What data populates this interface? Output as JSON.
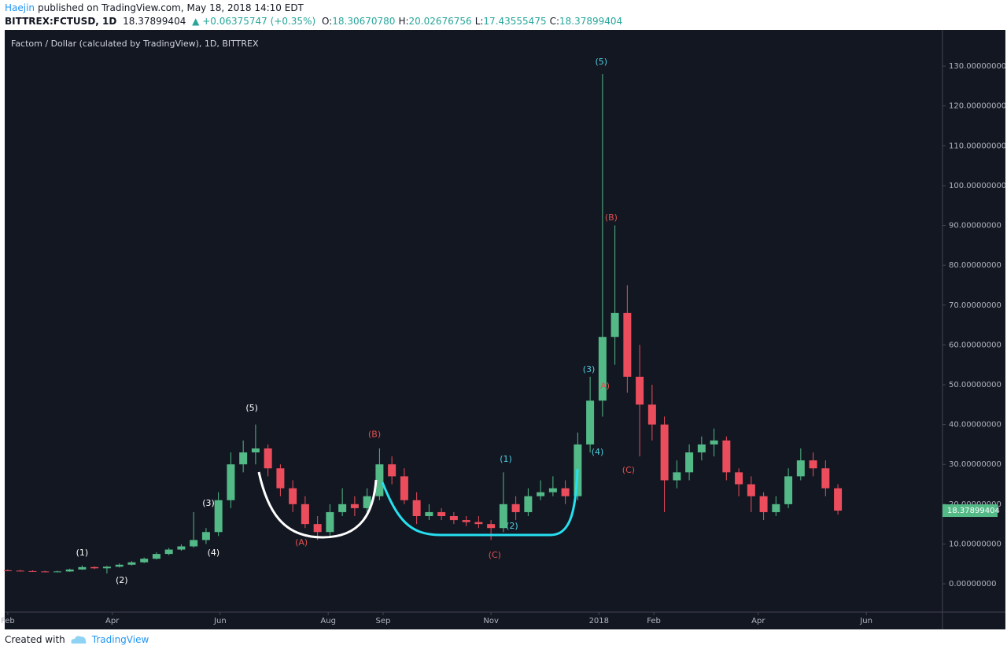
{
  "header": {
    "author": "Haejin",
    "published": "published on TradingView.com, May 18, 2018 14:10 EDT",
    "symbol": "BITTREX:FCTUSD, 1D",
    "price": "18.37899404",
    "change": "▲ +0.06375747 (+0.35%)",
    "ohlc": [
      {
        "key": "O:",
        "value": "18.30670780"
      },
      {
        "key": "H:",
        "value": "20.02676756"
      },
      {
        "key": "L:",
        "value": "17.43555475"
      },
      {
        "key": "C:",
        "value": "18.37899404"
      }
    ]
  },
  "chart_data": {
    "type": "candlestick",
    "title": "Factom / Dollar (calculated by TradingView), 1D, BITTREX",
    "x": [
      0,
      1,
      2,
      3,
      4,
      5,
      6,
      7,
      8,
      9,
      10,
      11,
      12,
      13,
      14,
      15,
      16,
      17,
      18,
      19,
      20,
      21,
      22,
      23,
      24,
      25,
      26,
      27,
      28,
      29,
      30,
      31,
      32,
      33,
      34,
      35,
      36,
      37,
      38,
      39,
      40,
      41,
      42,
      43,
      44,
      45,
      46,
      47,
      48,
      49,
      50,
      51,
      52,
      53,
      54,
      55,
      56,
      57,
      58,
      59,
      60,
      61,
      62,
      63,
      64,
      65,
      66,
      67
    ],
    "open": [
      3.4,
      3.3,
      3.2,
      3.1,
      3.0,
      3.1,
      3.6,
      4.2,
      3.9,
      4.3,
      4.8,
      5.4,
      6.3,
      7.5,
      8.6,
      9.4,
      11,
      13,
      21,
      30,
      33,
      34,
      29,
      24,
      20,
      15,
      13,
      18,
      20,
      19,
      22,
      30,
      27,
      21,
      17,
      18,
      17,
      16,
      15.5,
      15,
      14,
      20,
      18,
      22,
      23,
      24,
      22,
      35,
      46,
      62,
      68,
      52,
      45,
      40,
      26,
      28,
      33,
      35,
      36,
      28,
      25,
      22,
      18,
      20,
      27,
      31,
      29,
      24
    ],
    "high": [
      3.6,
      3.5,
      3.4,
      3.3,
      3.3,
      3.8,
      4.6,
      4.4,
      4.5,
      5.1,
      5.7,
      6.6,
      7.9,
      9.0,
      9.9,
      18,
      14,
      23,
      33,
      36,
      40,
      35,
      30,
      26,
      22,
      17,
      20,
      24,
      22,
      24,
      34,
      32,
      29,
      23,
      20,
      19,
      18,
      17,
      17,
      16,
      28,
      22,
      24,
      26,
      27,
      26,
      38,
      52,
      128,
      90,
      75,
      60,
      50,
      42,
      31,
      35,
      37,
      39,
      37,
      29,
      27,
      23,
      22,
      29,
      34,
      33,
      31,
      25
    ],
    "low": [
      3.2,
      3.1,
      3.0,
      2.9,
      2.9,
      3.0,
      3.5,
      3.7,
      2.6,
      4.1,
      4.6,
      5.2,
      6.1,
      7.2,
      8.3,
      9.1,
      10,
      12,
      19,
      28,
      30,
      27,
      22,
      18,
      14,
      11,
      12,
      17,
      17,
      18,
      21,
      25,
      20,
      15,
      16,
      16,
      15,
      14.5,
      14,
      11,
      13,
      16,
      17,
      21,
      22,
      20,
      21,
      33,
      42,
      55,
      48,
      32,
      36,
      18,
      24,
      26,
      31,
      32,
      26,
      22,
      18,
      16,
      17,
      19,
      26,
      27,
      22,
      17.4
    ],
    "close": [
      3.3,
      3.2,
      3.1,
      3.0,
      3.1,
      3.6,
      4.2,
      3.9,
      4.3,
      4.8,
      5.4,
      6.3,
      7.5,
      8.6,
      9.4,
      11,
      13,
      21,
      30,
      33,
      34,
      29,
      24,
      20,
      15,
      13,
      18,
      20,
      19,
      22,
      30,
      27,
      21,
      17,
      18,
      17,
      16,
      15.5,
      15,
      14,
      20,
      18,
      22,
      23,
      24,
      22,
      35,
      46,
      62,
      68,
      52,
      45,
      40,
      26,
      28,
      33,
      35,
      36,
      28,
      25,
      22,
      18,
      20,
      27,
      31,
      29,
      24,
      18.37899404
    ],
    "up_color": "#53b987",
    "down_color": "#eb4d5c",
    "grid": true,
    "ylim": [
      -7.1,
      139.1
    ],
    "yticks": [
      {
        "value": 0,
        "label": "0.00000000"
      },
      {
        "value": 10,
        "label": "10.00000000"
      },
      {
        "value": 20,
        "label": "20.00000000"
      },
      {
        "value": 30,
        "label": "30.00000000"
      },
      {
        "value": 40,
        "label": "40.00000000"
      },
      {
        "value": 50,
        "label": "50.00000000"
      },
      {
        "value": 60,
        "label": "60.00000000"
      },
      {
        "value": 70,
        "label": "70.00000000"
      },
      {
        "value": 80,
        "label": "80.00000000"
      },
      {
        "value": 90,
        "label": "90.00000000"
      },
      {
        "value": 100,
        "label": "100.00000000"
      },
      {
        "value": 110,
        "label": "110.00000000"
      },
      {
        "value": 120,
        "label": "120.00000000"
      },
      {
        "value": 130,
        "label": "130.00000000"
      }
    ],
    "xlim": [
      -0.25,
      75.44
    ],
    "xticks": [
      {
        "value": 0,
        "label": "Feb"
      },
      {
        "value": 8.43,
        "label": "Apr"
      },
      {
        "value": 17.14,
        "label": "Jun"
      },
      {
        "value": 25.86,
        "label": "Aug"
      },
      {
        "value": 30.29,
        "label": "Sep"
      },
      {
        "value": 39,
        "label": "Nov"
      },
      {
        "value": 47.71,
        "label": "2018"
      },
      {
        "value": 52.14,
        "label": "Feb"
      },
      {
        "value": 60.57,
        "label": "Apr"
      },
      {
        "value": 69.29,
        "label": "Jun"
      }
    ],
    "annotations": [
      {
        "text": "(1)",
        "x": 6.0,
        "y": 7.7,
        "color": "#ffffff"
      },
      {
        "text": "(2)",
        "x": 9.2,
        "y": 0.8,
        "color": "#ffffff"
      },
      {
        "text": "(3)",
        "x": 16.2,
        "y": 20.2,
        "color": "#ffffff"
      },
      {
        "text": "(4)",
        "x": 16.6,
        "y": 7.7,
        "color": "#ffffff"
      },
      {
        "text": "(5)",
        "x": 19.7,
        "y": 44.1,
        "color": "#ffffff"
      },
      {
        "text": "(A)",
        "x": 23.7,
        "y": 10.3,
        "color": "#e0524f"
      },
      {
        "text": "(B)",
        "x": 29.6,
        "y": 37.5,
        "color": "#e0524f"
      },
      {
        "text": "(C)",
        "x": 39.3,
        "y": 7.1,
        "color": "#e0524f"
      },
      {
        "text": "(1)",
        "x": 40.2,
        "y": 31.2,
        "color": "#4dd0e1"
      },
      {
        "text": "(2)",
        "x": 40.7,
        "y": 14.4,
        "color": "#4dd0e1"
      },
      {
        "text": "(3)",
        "x": 46.9,
        "y": 53.8,
        "color": "#4dd0e1"
      },
      {
        "text": "(4)",
        "x": 47.6,
        "y": 33.0,
        "color": "#4dd0e1"
      },
      {
        "text": "(5)",
        "x": 47.9,
        "y": 131,
        "color": "#4dd0e1"
      },
      {
        "text": "(B)",
        "x": 48.7,
        "y": 91.9,
        "color": "#e0524f"
      },
      {
        "text": "A)",
        "x": 48.2,
        "y": 49.6,
        "color": "#e0524f"
      },
      {
        "text": "(C)",
        "x": 50.1,
        "y": 28.5,
        "color": "#e0524f"
      }
    ]
  },
  "footer": {
    "created": "Created with",
    "brand": "TradingView"
  }
}
